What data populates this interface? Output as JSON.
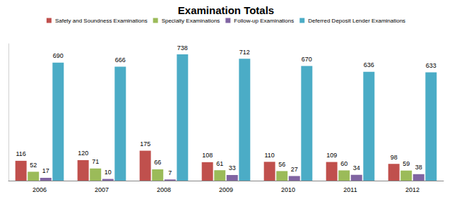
{
  "chart_data": {
    "type": "bar",
    "title": "Examination Totals",
    "categories": [
      "2006",
      "2007",
      "2008",
      "2009",
      "2010",
      "2011",
      "2012"
    ],
    "series": [
      {
        "name": "Safety and Soundness Examinations",
        "color": "#c0504d",
        "values": [
          116,
          120,
          175,
          108,
          110,
          109,
          98
        ]
      },
      {
        "name": "Specialty Examinations",
        "color": "#9bbb59",
        "values": [
          52,
          71,
          66,
          61,
          56,
          60,
          59
        ]
      },
      {
        "name": "Follow-up Examinations",
        "color": "#8064a2",
        "values": [
          17,
          10,
          7,
          33,
          27,
          34,
          38
        ]
      },
      {
        "name": "Deferred Deposit Lender Examinations",
        "color": "#4bacc6",
        "values": [
          690,
          666,
          738,
          712,
          670,
          636,
          633
        ]
      }
    ],
    "ylim": [
      0,
      800
    ],
    "grid": false,
    "legend": "top",
    "data_labels": true,
    "tick_labels": "x"
  }
}
